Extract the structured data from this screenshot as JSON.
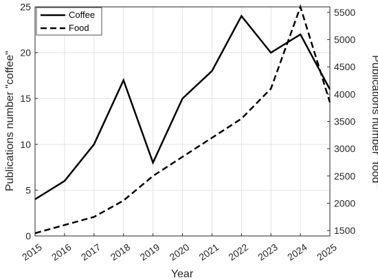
{
  "chart_data": {
    "type": "line",
    "x": [
      2015,
      2016,
      2017,
      2018,
      2019,
      2020,
      2021,
      2022,
      2023,
      2024,
      2025
    ],
    "xlabel": "Year",
    "xlim": [
      2015,
      2025
    ],
    "grid": true,
    "legend_position": "top-left",
    "series": [
      {
        "name": "Coffee",
        "axis": "left",
        "style": "solid",
        "color": "#000000",
        "values": [
          4,
          6,
          10,
          17,
          8,
          15,
          18,
          24,
          20,
          22,
          16
        ]
      },
      {
        "name": "Food",
        "axis": "right",
        "style": "dashed",
        "color": "#000000",
        "values": [
          1450,
          1600,
          1750,
          2050,
          2500,
          2850,
          3200,
          3550,
          4100,
          5600,
          3850
        ]
      }
    ],
    "left_axis": {
      "label": "Publications number \"coffee\"",
      "ylim": [
        0,
        25
      ],
      "ticks": [
        0,
        5,
        10,
        15,
        20,
        25
      ]
    },
    "right_axis": {
      "label": "Publications number \"food\"",
      "ylim": [
        1400,
        5600
      ],
      "ticks": [
        1500,
        2000,
        2500,
        3000,
        3500,
        4000,
        4500,
        5000,
        5500
      ]
    }
  }
}
